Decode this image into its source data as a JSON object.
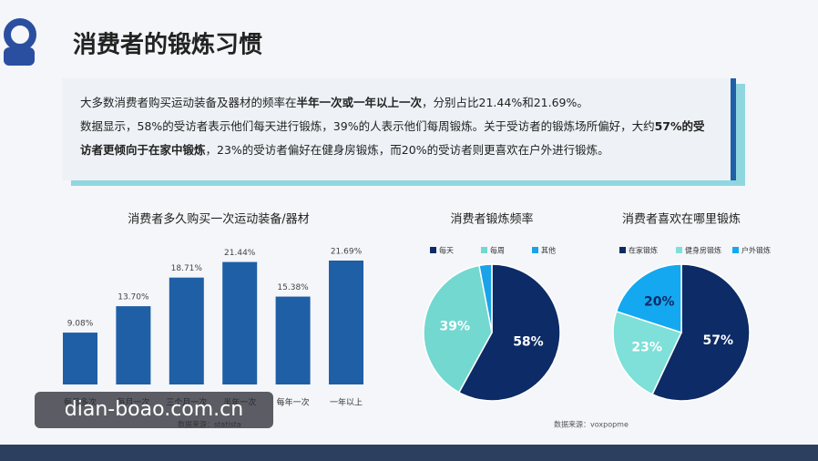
{
  "title": "消费者的锻炼习惯",
  "paragraphs": [
    [
      {
        "text": "大多数消费者购买运动装备及器材的频率在",
        "bold": false
      },
      {
        "text": "半年一次或一年以上一次",
        "bold": true
      },
      {
        "text": "，分别占比21.44%和21.69%。",
        "bold": false
      }
    ],
    [
      {
        "text": "数据显示，58%的受访者表示他们每天进行锻炼，39%的人表示他们每周锻炼。关于受访者的锻炼场所偏好，大约",
        "bold": false
      },
      {
        "text": "57%的受访者更倾向于在家中锻炼",
        "bold": true
      },
      {
        "text": "，23%的受访者偏好在健身房锻炼，而20%的受访者则更喜欢在户外进行锻炼。",
        "bold": false
      }
    ]
  ],
  "watermark": "dian-boao.com.cn",
  "chart_data": [
    {
      "type": "bar",
      "title": "消费者多久购买一次运动装备/器材",
      "source": "数据来源：statista",
      "color": "#1f5fa6",
      "categories": [
        "每月多次",
        "每月一次",
        "三个月一次",
        "半年一次",
        "每年一次",
        "一年以上"
      ],
      "values": [
        9.08,
        13.7,
        18.71,
        21.44,
        15.38,
        21.69
      ],
      "value_labels": [
        "9.08%",
        "13.70%",
        "18.71%",
        "21.44%",
        "15.38%",
        "21.69%"
      ]
    },
    {
      "type": "pie",
      "title": "消费者锻炼频率",
      "source": "数据来源：voxpopme",
      "categories": [
        "每天",
        "每周",
        "其他"
      ],
      "values": [
        58,
        39,
        3
      ],
      "value_labels": [
        "58%",
        "39%",
        null
      ],
      "colors": [
        "#0d2b66",
        "#72d8d0",
        "#1aa3e8"
      ]
    },
    {
      "type": "pie",
      "title": "消费者喜欢在哪里锻炼",
      "categories": [
        "在家锻炼",
        "健身房锻炼",
        "户外锻炼"
      ],
      "values": [
        57,
        23,
        20
      ],
      "value_labels": [
        "57%",
        "23%",
        "20%"
      ],
      "colors": [
        "#0d2b66",
        "#7ee0d8",
        "#14a8f0"
      ]
    }
  ]
}
